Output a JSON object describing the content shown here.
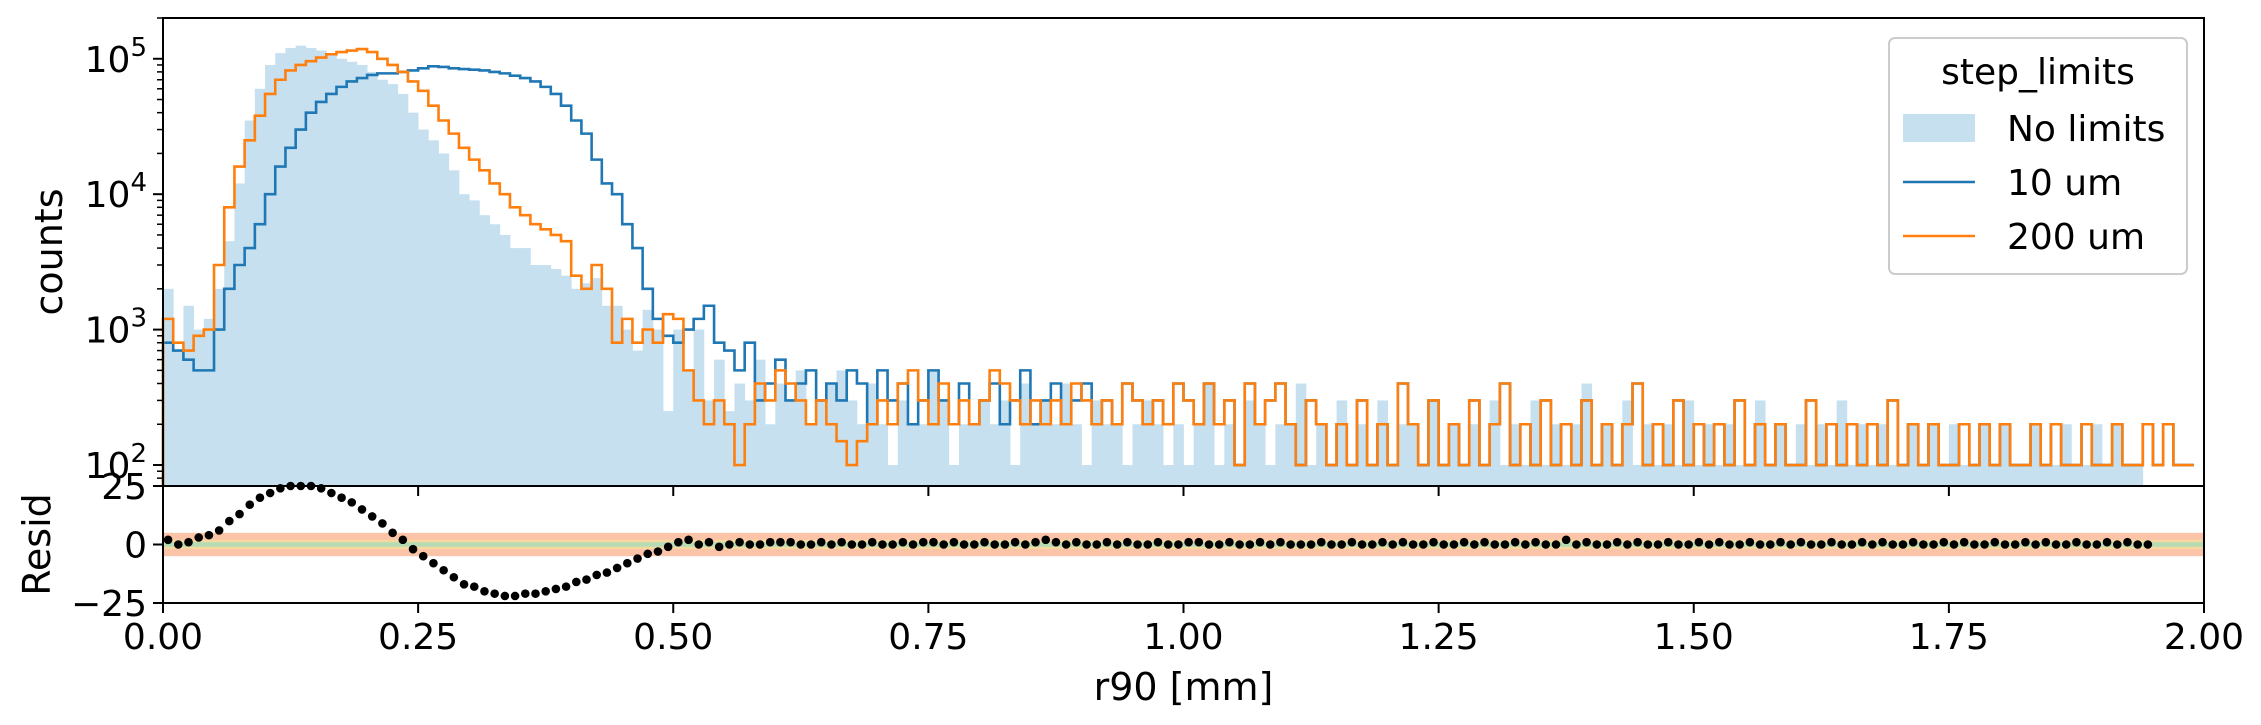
{
  "chart_data": [
    {
      "type": "histogram",
      "panel": "main",
      "ylabel": "counts",
      "yscale": "log",
      "ylim": [
        70,
        200000
      ],
      "xlim": [
        0,
        2.0
      ],
      "grid": false,
      "ytick_exponents": [
        "5",
        "4",
        "3",
        "2"
      ],
      "legend": {
        "title": "step_limits",
        "position": "upper-right",
        "entries": [
          "No limits",
          "10 um",
          "200 um"
        ]
      },
      "series_colors": [
        "#c6e0f0",
        "#1f77b4",
        "#ff7f0e"
      ],
      "bin_width": 0.01,
      "series": [
        {
          "name": "No limits",
          "style": "filled",
          "values": [
            2000,
            700,
            1500,
            1000,
            1200,
            2000,
            4500,
            12000,
            35000,
            60000,
            90000,
            110000,
            120000,
            125000,
            120000,
            115000,
            110000,
            100000,
            95000,
            90000,
            80000,
            70000,
            65000,
            55000,
            40000,
            30000,
            25000,
            20000,
            15000,
            10000,
            9000,
            7000,
            6000,
            5000,
            4000,
            4000,
            3000,
            3000,
            2800,
            2500,
            2000,
            2200,
            2400,
            1500,
            1500,
            1000,
            700,
            1400,
            1000,
            250,
            1000,
            500,
            1000,
            300,
            600,
            250,
            400,
            300,
            600,
            200,
            400,
            300,
            500,
            200,
            300,
            400,
            500,
            300,
            200,
            400,
            200,
            100,
            300,
            200,
            200,
            500,
            300,
            100,
            200,
            200,
            300,
            200,
            300,
            100,
            400,
            200,
            300,
            200,
            400,
            200,
            100,
            300,
            200,
            200,
            100,
            200,
            300,
            200,
            100,
            200,
            100,
            200,
            400,
            100,
            200,
            100,
            300,
            200,
            100,
            200,
            200,
            400,
            100,
            200,
            100,
            300,
            100,
            200,
            100,
            300,
            100,
            200,
            200,
            100,
            300,
            100,
            200,
            100,
            200,
            100,
            300,
            100,
            200,
            100,
            300,
            100,
            200,
            100,
            200,
            400,
            100,
            200,
            100,
            300,
            100,
            200,
            100,
            200,
            100,
            300,
            100,
            200,
            100,
            200,
            100,
            100,
            300,
            100,
            200,
            100,
            200,
            100,
            200,
            100,
            300,
            100,
            200,
            100,
            200,
            100,
            100,
            200,
            100,
            200,
            100,
            200,
            100,
            100,
            200,
            100,
            200,
            100,
            100,
            200,
            100,
            100,
            200,
            100,
            100,
            200,
            100,
            200,
            100,
            100
          ]
        },
        {
          "name": "10 um",
          "style": "step",
          "values": [
            800,
            700,
            600,
            500,
            500,
            1000,
            2000,
            3000,
            4000,
            6000,
            10000,
            16000,
            22000,
            30000,
            40000,
            48000,
            55000,
            62000,
            68000,
            72000,
            76000,
            78000,
            78000,
            80000,
            82000,
            85000,
            88000,
            87000,
            85000,
            84000,
            83000,
            82000,
            80000,
            78000,
            75000,
            72000,
            68000,
            62000,
            55000,
            45000,
            35000,
            28000,
            18000,
            12000,
            10000,
            6000,
            4000,
            2000,
            1200,
            900,
            800,
            1000,
            1200,
            1500,
            800,
            700,
            500,
            800,
            300,
            400,
            600,
            300,
            400,
            500,
            300,
            400,
            300,
            500,
            400,
            200,
            500,
            300,
            400,
            200,
            300,
            500,
            300,
            200,
            400,
            200,
            300,
            400,
            200,
            300,
            500,
            200,
            300,
            400,
            200,
            300,
            400,
            200,
            300,
            200,
            400,
            300,
            200,
            300,
            200,
            400,
            300,
            200,
            400,
            200,
            300,
            100,
            400,
            200,
            300,
            400,
            200,
            100,
            300,
            200,
            100,
            200,
            100,
            300,
            100,
            200,
            100,
            400,
            200,
            100,
            300,
            100,
            200,
            100,
            300,
            100,
            200,
            400,
            100,
            200,
            100,
            300,
            100,
            200,
            100,
            300,
            100,
            200,
            100,
            200,
            400,
            100,
            200,
            100,
            300,
            100,
            200,
            100,
            200,
            100,
            300,
            100,
            200,
            100,
            200,
            100,
            100,
            300,
            100,
            200,
            100,
            200,
            100,
            200,
            100,
            300,
            100,
            200,
            100,
            200,
            100,
            100,
            200,
            100,
            200,
            100,
            200,
            100,
            100,
            200,
            100,
            200,
            100,
            100,
            200,
            100,
            100,
            200,
            100,
            100,
            200,
            100,
            200,
            100,
            100
          ]
        },
        {
          "name": "200 um",
          "style": "step",
          "values": [
            1200,
            800,
            700,
            900,
            1000,
            3000,
            8000,
            16000,
            25000,
            38000,
            55000,
            70000,
            82000,
            90000,
            96000,
            102000,
            108000,
            112000,
            115000,
            118000,
            112000,
            100000,
            90000,
            80000,
            68000,
            58000,
            45000,
            35000,
            28000,
            22000,
            18000,
            15000,
            12000,
            10000,
            8000,
            7000,
            6000,
            5500,
            5000,
            4500,
            2500,
            2000,
            3000,
            2000,
            800,
            1200,
            800,
            1000,
            800,
            1300,
            1200,
            500,
            300,
            200,
            300,
            200,
            100,
            200,
            400,
            300,
            500,
            400,
            300,
            200,
            300,
            200,
            150,
            100,
            150,
            200,
            300,
            200,
            400,
            500,
            300,
            200,
            400,
            200,
            300,
            200,
            300,
            500,
            400,
            300,
            200,
            300,
            200,
            300,
            200,
            400,
            300,
            200,
            300,
            200,
            400,
            300,
            200,
            300,
            200,
            400,
            300,
            200,
            400,
            200,
            300,
            100,
            400,
            200,
            300,
            400,
            200,
            100,
            300,
            200,
            100,
            200,
            100,
            300,
            100,
            200,
            100,
            400,
            200,
            100,
            300,
            100,
            200,
            100,
            300,
            100,
            200,
            400,
            100,
            200,
            100,
            300,
            100,
            200,
            100,
            300,
            100,
            200,
            100,
            200,
            400,
            100,
            200,
            100,
            300,
            100,
            200,
            100,
            200,
            100,
            300,
            100,
            200,
            100,
            200,
            100,
            100,
            300,
            100,
            200,
            100,
            200,
            100,
            200,
            100,
            300,
            100,
            200,
            100,
            200,
            100,
            100,
            200,
            100,
            200,
            100,
            200,
            100,
            100,
            200,
            100,
            200,
            100,
            100,
            200,
            100,
            100,
            200,
            100,
            100,
            200,
            100,
            200,
            100,
            100
          ]
        }
      ]
    },
    {
      "type": "scatter",
      "panel": "residual",
      "ylabel": "Resid",
      "xlabel": "r90 [mm]",
      "xlim": [
        0,
        2.0
      ],
      "ylim": [
        -25,
        25
      ],
      "xticks": [
        "0.00",
        "0.25",
        "0.50",
        "0.75",
        "1.00",
        "1.25",
        "1.50",
        "1.75",
        "2.00"
      ],
      "yticks": [
        "25",
        "0",
        "−25"
      ],
      "yticks_values": [
        25,
        0,
        -25
      ],
      "bands": [
        {
          "from": -5,
          "to": 5,
          "color": "#fbc4a8"
        },
        {
          "from": -2,
          "to": 2,
          "color": "#f7d9a0"
        },
        {
          "from": -1,
          "to": 1,
          "color": "#b7dcb4"
        }
      ],
      "marker_color": "#000000",
      "x_step": 0.01,
      "values": [
        2,
        0,
        1,
        3,
        4,
        6,
        10,
        13,
        17,
        20,
        22,
        24,
        25,
        25,
        25,
        24,
        22,
        20,
        18,
        15,
        12,
        9,
        5,
        2,
        -2,
        -5,
        -8,
        -11,
        -14,
        -17,
        -18,
        -20,
        -21,
        -22,
        -22,
        -21,
        -21,
        -20,
        -19,
        -18,
        -16,
        -15,
        -13,
        -12,
        -10,
        -8,
        -6,
        -4,
        -3,
        -1,
        1,
        2,
        0,
        1,
        -1,
        0,
        1,
        0,
        0,
        1,
        1,
        1,
        0,
        0,
        1,
        0,
        1,
        0,
        0,
        1,
        0,
        0,
        1,
        0,
        1,
        1,
        0,
        1,
        0,
        0,
        1,
        0,
        0,
        1,
        0,
        1,
        2,
        1,
        0,
        1,
        0,
        0,
        1,
        0,
        1,
        0,
        0,
        1,
        0,
        0,
        1,
        1,
        0,
        0,
        1,
        0,
        0,
        1,
        0,
        1,
        0,
        0,
        0,
        1,
        0,
        0,
        1,
        0,
        0,
        1,
        0,
        1,
        0,
        0,
        1,
        0,
        0,
        1,
        0,
        1,
        0,
        0,
        1,
        0,
        1,
        0,
        0,
        2,
        0,
        1,
        0,
        0,
        1,
        0,
        1,
        0,
        0,
        1,
        0,
        0,
        1,
        0,
        1,
        0,
        0,
        1,
        0,
        0,
        1,
        0,
        1,
        0,
        0,
        1,
        0,
        0,
        1,
        0,
        1,
        0,
        0,
        1,
        0,
        0,
        1,
        0,
        1,
        0,
        0,
        1,
        0,
        0,
        1,
        0,
        1,
        0,
        0,
        1,
        0,
        0,
        1,
        0,
        1,
        0,
        0
      ]
    }
  ]
}
